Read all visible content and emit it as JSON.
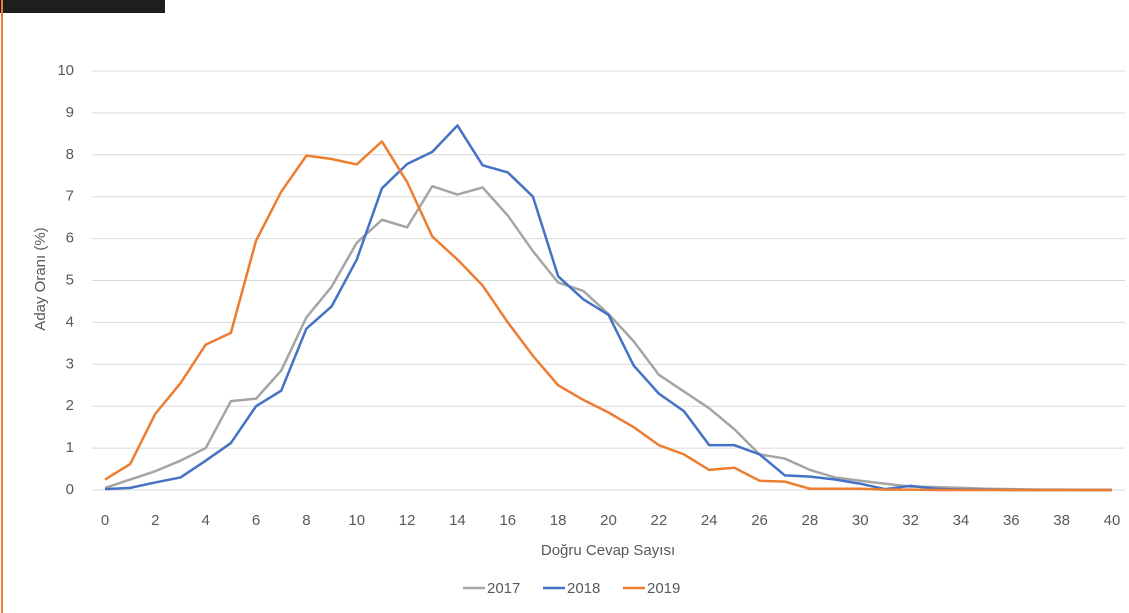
{
  "chart_data": {
    "type": "line",
    "x_label": "Doğru Cevap Sayısı",
    "y_label": "Aday Oranı (%)",
    "x": [
      0,
      1,
      2,
      3,
      4,
      5,
      6,
      7,
      8,
      9,
      10,
      11,
      12,
      13,
      14,
      15,
      16,
      17,
      18,
      19,
      20,
      21,
      22,
      23,
      24,
      25,
      26,
      27,
      28,
      29,
      30,
      31,
      32,
      33,
      34,
      35,
      36,
      37,
      38,
      39,
      40
    ],
    "series": [
      {
        "name": "2017",
        "color": "#a5a5a5",
        "values": [
          0.05,
          0.25,
          0.45,
          0.7,
          1.0,
          2.12,
          2.18,
          2.85,
          4.12,
          4.85,
          5.9,
          6.45,
          6.27,
          7.25,
          7.05,
          7.22,
          6.55,
          5.7,
          4.95,
          4.75,
          4.2,
          3.55,
          2.75,
          2.35,
          1.95,
          1.45,
          0.85,
          0.75,
          0.48,
          0.3,
          0.22,
          0.15,
          0.08,
          0.07,
          0.05,
          0.03,
          0.02,
          0.01,
          0.01,
          0,
          0
        ]
      },
      {
        "name": "2018",
        "color": "#4472c4",
        "values": [
          0.02,
          0.05,
          0.18,
          0.3,
          0.7,
          1.12,
          2.0,
          2.37,
          3.85,
          4.38,
          5.5,
          7.2,
          7.78,
          8.07,
          8.7,
          7.75,
          7.58,
          7.0,
          5.1,
          4.55,
          4.18,
          2.97,
          2.3,
          1.88,
          1.07,
          1.07,
          0.85,
          0.35,
          0.32,
          0.25,
          0.15,
          0.02,
          0.1,
          0.03,
          0.01,
          0.01,
          0,
          0,
          0,
          0,
          0
        ]
      },
      {
        "name": "2019",
        "color": "#ed7d31",
        "values": [
          0.25,
          0.62,
          1.82,
          2.55,
          3.47,
          3.75,
          5.95,
          7.12,
          7.98,
          7.9,
          7.77,
          8.32,
          7.35,
          6.05,
          5.5,
          4.88,
          4.0,
          3.2,
          2.5,
          2.15,
          1.85,
          1.5,
          1.07,
          0.85,
          0.48,
          0.53,
          0.22,
          0.2,
          0.03,
          0.03,
          0.03,
          0.01,
          0.01,
          0,
          0,
          0,
          0,
          0,
          0,
          0,
          0
        ]
      }
    ],
    "xlim": [
      0,
      40
    ],
    "xticks": [
      0,
      2,
      4,
      6,
      8,
      10,
      12,
      14,
      16,
      18,
      20,
      22,
      24,
      26,
      28,
      30,
      32,
      34,
      36,
      38,
      40
    ],
    "ylim": [
      0,
      10
    ],
    "yticks": [
      0,
      1,
      2,
      3,
      4,
      5,
      6,
      7,
      8,
      9,
      10
    ],
    "grid": true,
    "legend": "bottom"
  }
}
